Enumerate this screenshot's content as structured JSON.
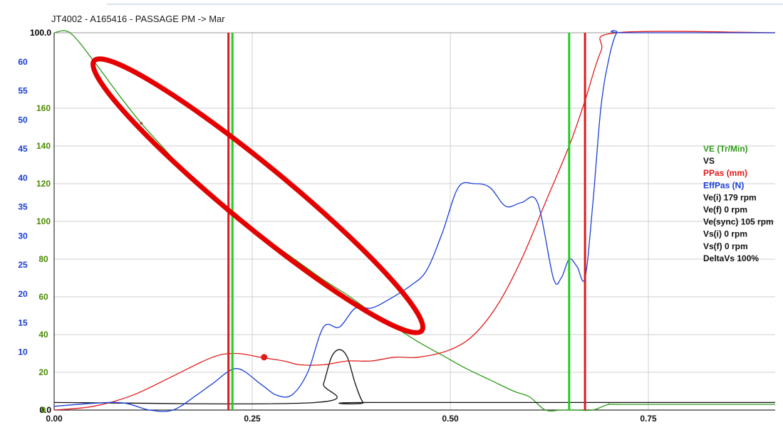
{
  "chart_data": {
    "type": "line",
    "title": "JT4002 - A165416 - PASSAGE PM -> Mar",
    "x_axis": {
      "ticks": [
        0.0,
        0.25,
        0.5,
        0.75
      ],
      "tick_labels": [
        "0.00",
        "0.25",
        "0.50",
        "0.75"
      ],
      "range": [
        0.0,
        0.91
      ]
    },
    "y_axes": {
      "percent": {
        "color": "#000000",
        "range": [
          0,
          100
        ],
        "tick_labels": [
          {
            "value": 0,
            "label": "0.0"
          },
          {
            "value": 100,
            "label": "100.0"
          }
        ]
      },
      "velocity": {
        "color": "#4a8a00",
        "range": [
          0,
          200
        ],
        "tick_labels": [
          "0",
          "20",
          "40",
          "60",
          "80",
          "100",
          "120",
          "140",
          "160"
        ]
      },
      "force": {
        "color": "#1a3fd6",
        "range": [
          0,
          65
        ],
        "tick_labels": [
          "10",
          "15",
          "20",
          "25",
          "30",
          "35",
          "40",
          "45",
          "50",
          "55",
          "60"
        ]
      }
    },
    "grid": true,
    "series": [
      {
        "name": "VE (Tr/Min)",
        "color": "#2e9a1a",
        "axis": "velocity",
        "x": [
          0.0,
          0.02,
          0.05,
          0.08,
          0.11,
          0.14,
          0.17,
          0.2,
          0.225,
          0.25,
          0.28,
          0.31,
          0.34,
          0.37,
          0.4,
          0.43,
          0.46,
          0.49,
          0.52,
          0.55,
          0.58,
          0.6,
          0.62,
          0.64,
          0.66,
          0.68,
          0.7,
          0.72,
          0.91
        ],
        "y": [
          200,
          200,
          185,
          168,
          152,
          138,
          124,
          112,
          104,
          96,
          87,
          78,
          69,
          61,
          52,
          44,
          36,
          29,
          22,
          16,
          10,
          7,
          0,
          0,
          0,
          0,
          3,
          3,
          3
        ]
      },
      {
        "name": "VS",
        "color": "#111111",
        "axis": "percent",
        "x": [
          0.0,
          0.33,
          0.34,
          0.35,
          0.36,
          0.37,
          0.38,
          0.39,
          0.4,
          0.91
        ],
        "y": [
          2,
          2,
          7,
          14,
          16,
          14,
          7,
          2,
          2,
          2
        ]
      },
      {
        "name": "PPas (mm)",
        "color": "#e01b1b",
        "axis": "percent",
        "x": [
          0.0,
          0.05,
          0.1,
          0.15,
          0.2,
          0.23,
          0.26,
          0.29,
          0.31,
          0.34,
          0.37,
          0.4,
          0.43,
          0.46,
          0.5,
          0.53,
          0.56,
          0.59,
          0.62,
          0.65,
          0.67,
          0.69,
          0.71,
          0.91
        ],
        "y": [
          0,
          1,
          4,
          9,
          14,
          15,
          14,
          13,
          12,
          12,
          13,
          13,
          14,
          14,
          16,
          20,
          28,
          40,
          55,
          70,
          82,
          95,
          100,
          100
        ]
      },
      {
        "name": "EffPas (N)",
        "color": "#1a3fd6",
        "axis": "percent",
        "x": [
          0.0,
          0.08,
          0.12,
          0.15,
          0.18,
          0.2,
          0.23,
          0.26,
          0.28,
          0.3,
          0.32,
          0.34,
          0.36,
          0.38,
          0.4,
          0.42,
          0.45,
          0.47,
          0.49,
          0.51,
          0.53,
          0.55,
          0.57,
          0.59,
          0.61,
          0.63,
          0.64,
          0.65,
          0.66,
          0.67,
          0.68,
          0.69,
          0.7,
          0.71,
          0.72,
          0.91
        ],
        "y": [
          1,
          2,
          0,
          0,
          4,
          7,
          11,
          7,
          4,
          4,
          10,
          22,
          22,
          27,
          27,
          29,
          33,
          37,
          47,
          59,
          60,
          59,
          54,
          55,
          55,
          35,
          35,
          40,
          38,
          35,
          55,
          80,
          93,
          100,
          100,
          100
        ]
      }
    ],
    "vertical_markers": [
      {
        "x": 0.22,
        "color": "#e01b1b"
      },
      {
        "x": 0.225,
        "color": "#22cc22"
      },
      {
        "x": 0.65,
        "color": "#22cc22"
      },
      {
        "x": 0.67,
        "color": "#e01b1b"
      }
    ],
    "highlight_marker": {
      "x": 0.265,
      "y": 14,
      "series": "PPas (mm)"
    },
    "legend": {
      "placement": "right",
      "entries": [
        {
          "text": "VE (Tr/Min)",
          "color": "#2e9a1a"
        },
        {
          "text": "VS",
          "color": "#111111"
        },
        {
          "text": "PPas (mm)",
          "color": "#e01b1b"
        },
        {
          "text": "EffPas (N)",
          "color": "#1a3fd6"
        },
        {
          "text": "Ve(i) 179 rpm",
          "color": "#111111"
        },
        {
          "text": "Ve(f) 0 rpm",
          "color": "#111111"
        },
        {
          "text": "Ve(sync) 105 rpm",
          "color": "#111111"
        },
        {
          "text": "Vs(i) 0 rpm",
          "color": "#111111"
        },
        {
          "text": "Vs(f) 0 rpm",
          "color": "#111111"
        },
        {
          "text": "DeltaVs 100%",
          "color": "#111111"
        }
      ]
    },
    "annotation": {
      "type": "ellipse",
      "color": "#e50000",
      "note": ""
    }
  }
}
